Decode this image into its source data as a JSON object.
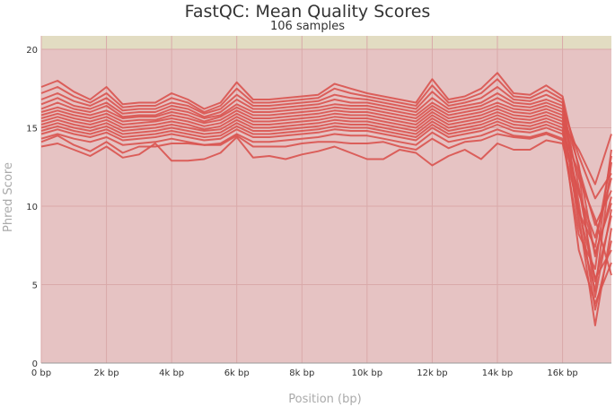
{
  "chart_data": {
    "type": "line",
    "title": "FastQC: Mean Quality Scores",
    "subtitle": "106 samples",
    "xlabel": "Position (bp)",
    "ylabel": "Phred Score",
    "xlim": [
      0,
      17500
    ],
    "ylim": [
      0,
      20
    ],
    "x_ticks": [
      {
        "value": 0,
        "label": "0 bp"
      },
      {
        "value": 2000,
        "label": "2k bp"
      },
      {
        "value": 4000,
        "label": "4k bp"
      },
      {
        "value": 6000,
        "label": "6k bp"
      },
      {
        "value": 8000,
        "label": "8k bp"
      },
      {
        "value": 10000,
        "label": "10k bp"
      },
      {
        "value": 12000,
        "label": "12k bp"
      },
      {
        "value": 14000,
        "label": "14k bp"
      },
      {
        "value": 16000,
        "label": "16k bp"
      }
    ],
    "y_ticks": [
      0,
      5,
      10,
      15,
      20
    ],
    "grid": true,
    "series_color": "#d9534f",
    "bands": [
      {
        "from": 0,
        "to": 20,
        "color": "#e6c3c3"
      },
      {
        "from": 20,
        "to": 21,
        "color": "#e2dcc2"
      }
    ],
    "x": [
      0,
      500,
      1000,
      1500,
      2000,
      2500,
      3000,
      3500,
      4000,
      4500,
      5000,
      5500,
      6000,
      6500,
      7000,
      7500,
      8000,
      8500,
      9000,
      9500,
      10000,
      10500,
      11000,
      11500,
      12000,
      12500,
      13000,
      13500,
      14000,
      14500,
      15000,
      15500,
      16000,
      16500,
      17000,
      17500
    ],
    "series": [
      {
        "values": [
          17.6,
          18.0,
          17.3,
          16.8,
          17.6,
          16.5,
          16.6,
          16.6,
          17.2,
          16.8,
          16.2,
          16.6,
          17.9,
          16.8,
          16.8,
          16.9,
          17.0,
          17.1,
          17.8,
          17.5,
          17.2,
          17.0,
          16.8,
          16.6,
          18.1,
          16.8,
          17.0,
          17.5,
          18.5,
          17.2,
          17.1,
          17.7,
          17.0,
          12.4,
          8.8,
          11.0
        ]
      },
      {
        "values": [
          17.2,
          17.6,
          17.0,
          16.6,
          17.2,
          16.3,
          16.4,
          16.4,
          16.9,
          16.6,
          16.0,
          16.4,
          17.5,
          16.6,
          16.6,
          16.7,
          16.8,
          16.9,
          17.5,
          17.2,
          17.0,
          16.8,
          16.6,
          16.4,
          17.7,
          16.6,
          16.8,
          17.2,
          18.1,
          17.0,
          16.9,
          17.4,
          16.8,
          9.6,
          7.4,
          13.2
        ]
      },
      {
        "values": [
          16.8,
          17.2,
          16.7,
          16.4,
          16.9,
          16.1,
          16.2,
          16.2,
          16.6,
          16.4,
          15.9,
          16.2,
          17.1,
          16.4,
          16.4,
          16.5,
          16.6,
          16.7,
          17.1,
          16.9,
          16.8,
          16.6,
          16.4,
          16.2,
          17.3,
          16.4,
          16.6,
          16.9,
          17.6,
          16.8,
          16.7,
          17.1,
          16.6,
          11.2,
          5.2,
          9.4
        ]
      },
      {
        "values": [
          16.5,
          16.9,
          16.4,
          16.2,
          16.6,
          15.9,
          16.0,
          16.0,
          16.4,
          16.2,
          15.7,
          16.0,
          16.8,
          16.2,
          16.2,
          16.3,
          16.4,
          16.5,
          16.8,
          16.6,
          16.6,
          16.4,
          16.2,
          16.0,
          16.9,
          16.2,
          16.4,
          16.6,
          17.2,
          16.6,
          16.5,
          16.8,
          16.4,
          13.2,
          10.5,
          12.1
        ]
      },
      {
        "values": [
          16.2,
          16.6,
          16.2,
          16.0,
          16.4,
          15.7,
          15.8,
          15.8,
          16.2,
          16.0,
          15.6,
          15.8,
          16.5,
          16.0,
          16.0,
          16.1,
          16.2,
          16.3,
          16.5,
          16.4,
          16.4,
          16.2,
          16.0,
          15.8,
          16.6,
          16.0,
          16.2,
          16.4,
          16.9,
          16.4,
          16.3,
          16.6,
          16.2,
          10.2,
          3.4,
          7.8
        ]
      },
      {
        "values": [
          16.0,
          16.3,
          16.0,
          15.8,
          16.1,
          15.6,
          15.7,
          15.7,
          16.0,
          15.8,
          15.4,
          15.7,
          16.3,
          15.8,
          15.8,
          15.9,
          16.0,
          16.1,
          16.3,
          16.2,
          16.2,
          16.0,
          15.8,
          15.6,
          16.4,
          15.8,
          16.0,
          16.2,
          16.6,
          16.2,
          16.1,
          16.4,
          16.0,
          12.6,
          6.8,
          10.6
        ]
      },
      {
        "values": [
          15.8,
          16.1,
          15.8,
          15.6,
          15.9,
          15.4,
          15.5,
          15.5,
          15.8,
          15.6,
          15.3,
          15.5,
          16.1,
          15.6,
          15.6,
          15.7,
          15.8,
          15.9,
          16.1,
          16.0,
          16.0,
          15.8,
          15.6,
          15.4,
          16.2,
          15.6,
          15.8,
          16.0,
          16.4,
          16.0,
          15.9,
          16.2,
          15.8,
          8.8,
          4.6,
          12.8
        ]
      },
      {
        "values": [
          15.6,
          15.9,
          15.6,
          15.4,
          15.7,
          15.2,
          15.3,
          15.4,
          15.6,
          15.4,
          15.1,
          15.3,
          15.9,
          15.4,
          15.4,
          15.5,
          15.6,
          15.7,
          15.9,
          15.8,
          15.8,
          15.6,
          15.4,
          15.2,
          16.0,
          15.4,
          15.6,
          15.8,
          16.2,
          15.8,
          15.7,
          16.0,
          15.6,
          11.8,
          9.2,
          5.6
        ]
      },
      {
        "values": [
          15.4,
          15.7,
          15.4,
          15.2,
          15.5,
          15.0,
          15.1,
          15.2,
          15.4,
          15.2,
          14.9,
          15.1,
          15.7,
          15.2,
          15.2,
          15.3,
          15.4,
          15.5,
          15.7,
          15.6,
          15.6,
          15.4,
          15.2,
          15.0,
          15.8,
          15.2,
          15.4,
          15.6,
          16.0,
          15.6,
          15.5,
          15.8,
          15.4,
          9.4,
          2.4,
          8.6
        ]
      },
      {
        "values": [
          15.2,
          15.5,
          15.2,
          15.0,
          15.3,
          14.8,
          14.9,
          15.0,
          15.2,
          15.0,
          14.8,
          14.9,
          15.5,
          15.0,
          15.0,
          15.1,
          15.2,
          15.3,
          15.5,
          15.4,
          15.4,
          15.2,
          15.0,
          14.8,
          15.6,
          15.0,
          15.2,
          15.4,
          15.8,
          15.4,
          15.3,
          15.6,
          15.2,
          13.6,
          11.4,
          14.6
        ]
      },
      {
        "values": [
          15.0,
          15.3,
          15.0,
          14.8,
          15.1,
          14.6,
          14.7,
          14.8,
          15.0,
          14.8,
          14.6,
          14.7,
          15.3,
          14.8,
          14.8,
          14.9,
          15.0,
          15.1,
          15.3,
          15.2,
          15.2,
          15.0,
          14.8,
          14.6,
          15.4,
          14.8,
          15.0,
          15.2,
          15.6,
          15.2,
          15.1,
          15.4,
          15.0,
          7.2,
          3.8,
          6.4
        ]
      },
      {
        "values": [
          14.8,
          15.1,
          14.8,
          14.6,
          14.9,
          14.4,
          14.5,
          14.6,
          14.8,
          14.6,
          14.4,
          14.5,
          15.1,
          14.6,
          14.6,
          14.7,
          14.8,
          14.9,
          15.1,
          15.0,
          15.0,
          14.8,
          14.6,
          14.4,
          15.2,
          14.6,
          14.8,
          15.0,
          15.4,
          15.0,
          14.9,
          15.2,
          14.8,
          10.8,
          8.0,
          11.8
        ]
      },
      {
        "values": [
          14.6,
          14.9,
          14.6,
          14.4,
          14.7,
          14.2,
          14.3,
          14.4,
          14.6,
          14.4,
          14.2,
          14.3,
          14.9,
          14.4,
          14.4,
          14.5,
          14.6,
          14.7,
          14.9,
          14.8,
          14.8,
          14.6,
          14.4,
          14.2,
          15.0,
          14.4,
          14.6,
          14.8,
          15.2,
          14.8,
          14.7,
          15.0,
          14.6,
          12.2,
          4.2,
          9.8
        ]
      },
      {
        "values": [
          14.3,
          14.6,
          14.3,
          14.1,
          14.4,
          13.9,
          14.0,
          14.1,
          14.3,
          14.1,
          13.9,
          14.0,
          14.6,
          14.1,
          14.1,
          14.2,
          14.3,
          14.4,
          14.6,
          14.5,
          14.5,
          14.3,
          14.1,
          13.9,
          14.7,
          14.1,
          14.3,
          14.5,
          14.9,
          14.5,
          14.4,
          14.7,
          14.3,
          8.2,
          6.0,
          13.6
        ]
      },
      {
        "values": [
          14.1,
          14.5,
          13.9,
          13.5,
          14.1,
          13.4,
          13.8,
          13.8,
          14.0,
          14.0,
          13.9,
          13.9,
          14.5,
          13.8,
          13.8,
          13.8,
          14.0,
          14.1,
          14.1,
          14.0,
          14.0,
          14.1,
          13.8,
          13.6,
          14.3,
          13.7,
          14.1,
          14.2,
          14.6,
          14.4,
          14.3,
          14.6,
          14.2,
          11.0,
          7.0,
          10.2
        ]
      },
      {
        "values": [
          13.8,
          14.0,
          13.6,
          13.2,
          13.8,
          13.1,
          13.3,
          14.0,
          12.9,
          12.9,
          13.0,
          13.4,
          14.4,
          13.1,
          13.2,
          13.0,
          13.3,
          13.5,
          13.8,
          13.4,
          13.0,
          13.0,
          13.6,
          13.4,
          12.6,
          13.2,
          13.6,
          13.0,
          14.0,
          13.6,
          13.6,
          14.2,
          14.0,
          9.8,
          5.4,
          7.2
        ]
      }
    ]
  }
}
